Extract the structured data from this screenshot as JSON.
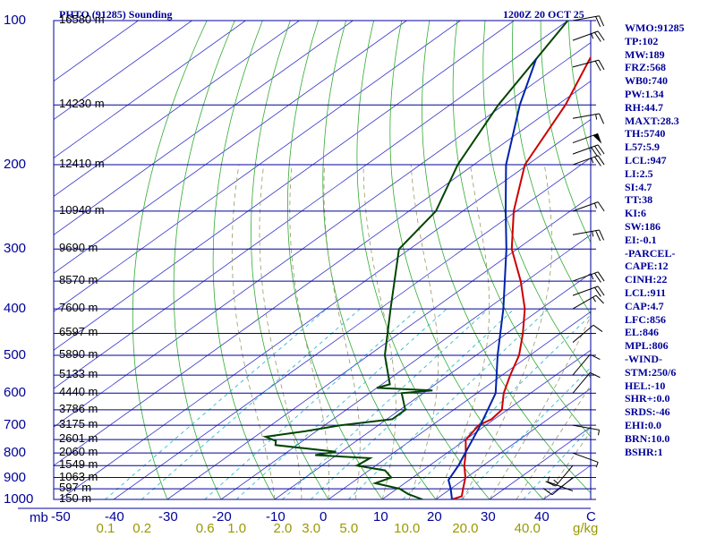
{
  "header": {
    "station": "PHTO (91285) Sounding",
    "time": "1200Z 20 OCT 25"
  },
  "indices": [
    "WMO:91285",
    "TP:102",
    "MW:189",
    "FRZ:568",
    "WB0:740",
    "PW:1.34",
    "RH:44.7",
    "MAXT:28.3",
    "TH:5740",
    "L57:5.9",
    "LCL:947",
    "LI:2.5",
    "SI:4.7",
    "TT:38",
    "KI:6",
    "SW:186",
    "EI:-0.1",
    "-PARCEL-",
    "CAPE:12",
    "CINH:22",
    "LCL:911",
    "CAP:4.7",
    "LFC:856",
    "EL:846",
    "MPL:806",
    "-WIND-",
    "STM:250/6",
    "HEL:-10",
    "SHR+:0.0",
    "SRDS:-46",
    "EHI:0.0",
    "BRN:10.0",
    "BSHR:1"
  ],
  "colors": {
    "isobar": "#000099",
    "isotherm": "#3333cc",
    "dry_adiabat": "#33aa33",
    "moist_adiabat": "#999966",
    "mixing_ratio": "#33bbcc",
    "temperature": "#cc0000",
    "dewpoint": "#004400",
    "parcel": "#0022aa",
    "wind": "#000000",
    "axis_text": "#000099",
    "mixing_text": "#999900"
  },
  "chart_data": {
    "type": "line",
    "title": "PHTO (91285) Sounding",
    "xlabel": "C",
    "ylabel": "mb",
    "temp_range": [
      -50,
      50
    ],
    "pressure_range": [
      100,
      1000
    ],
    "skew": "skew-T log-P",
    "pressure_ticks": [
      100,
      200,
      300,
      400,
      500,
      600,
      700,
      800,
      900,
      1000
    ],
    "height_labels": [
      {
        "p": 100,
        "label": "16580 m"
      },
      {
        "p": 150,
        "label": "14230 m"
      },
      {
        "p": 200,
        "label": "12410 m"
      },
      {
        "p": 250,
        "label": "10940 m"
      },
      {
        "p": 300,
        "label": "9690 m"
      },
      {
        "p": 350,
        "label": "8570 m"
      },
      {
        "p": 400,
        "label": "7600 m"
      },
      {
        "p": 450,
        "label": "6597 m"
      },
      {
        "p": 500,
        "label": "5890 m"
      },
      {
        "p": 550,
        "label": "5133 m"
      },
      {
        "p": 600,
        "label": "4440 m"
      },
      {
        "p": 650,
        "label": "3786 m"
      },
      {
        "p": 700,
        "label": "3175 m"
      },
      {
        "p": 750,
        "label": "2601 m"
      },
      {
        "p": 800,
        "label": "2060 m"
      },
      {
        "p": 850,
        "label": "1549 m"
      },
      {
        "p": 900,
        "label": "1063 m"
      },
      {
        "p": 950,
        "label": "597 m"
      },
      {
        "p": 1000,
        "label": "150 m"
      }
    ],
    "temp_ticks": [
      "-50",
      "-40",
      "-30",
      "-20",
      "-10",
      "0",
      "10",
      "20",
      "30",
      "40"
    ],
    "temp_tick_values": [
      -50,
      -40,
      -30,
      -20,
      -10,
      0,
      10,
      20,
      30,
      40
    ],
    "mixing_ticks": [
      {
        "label": "0.1",
        "w": 0.1
      },
      {
        "label": "0.2",
        "w": 0.2
      },
      {
        "label": "0.6",
        "w": 0.6
      },
      {
        "label": "1.0",
        "w": 1.0
      },
      {
        "label": "2.0",
        "w": 2.0
      },
      {
        "label": "3.0",
        "w": 3.0
      },
      {
        "label": "5.0",
        "w": 5.0
      },
      {
        "label": "10.0",
        "w": 10.0
      },
      {
        "label": "20.0",
        "w": 20.0
      },
      {
        "label": "40.0",
        "w": 40.0
      }
    ],
    "mixing_unit": "g/kg",
    "pressure_unit": "mb",
    "series": [
      {
        "name": "",
        "role": "temperature",
        "points": [
          [
            100,
            -71.0
          ],
          [
            120,
            -66.0
          ],
          [
            150,
            -58.5
          ],
          [
            200,
            -50.5
          ],
          [
            250,
            -40.5
          ],
          [
            300,
            -31.0
          ],
          [
            350,
            -21.0
          ],
          [
            400,
            -13.0
          ],
          [
            450,
            -7.0
          ],
          [
            500,
            -2.0
          ],
          [
            550,
            1.5
          ],
          [
            600,
            5.0
          ],
          [
            650,
            9.0
          ],
          [
            680,
            9.5
          ],
          [
            700,
            8.7
          ],
          [
            750,
            10.0
          ],
          [
            800,
            13.5
          ],
          [
            850,
            16.5
          ],
          [
            900,
            19.8
          ],
          [
            950,
            22.3
          ],
          [
            985,
            24.0
          ],
          [
            1000,
            23.0
          ]
        ]
      },
      {
        "name": "",
        "role": "dewpoint",
        "points": [
          [
            100,
            -80.0
          ],
          [
            150,
            -71.0
          ],
          [
            200,
            -63.0
          ],
          [
            250,
            -55.0
          ],
          [
            300,
            -52.0
          ],
          [
            400,
            -38.0
          ],
          [
            500,
            -27.0
          ],
          [
            575,
            -18.5
          ],
          [
            585,
            -20.0
          ],
          [
            592,
            -9.0
          ],
          [
            600,
            -14.0
          ],
          [
            650,
            -9.0
          ],
          [
            680,
            -9.0
          ],
          [
            700,
            -17.0
          ],
          [
            720,
            -22.0
          ],
          [
            740,
            -28.0
          ],
          [
            755,
            -25.0
          ],
          [
            770,
            -24.0
          ],
          [
            795,
            -11.0
          ],
          [
            808,
            -14.0
          ],
          [
            820,
            -3.0
          ],
          [
            850,
            -3.5
          ],
          [
            870,
            3.0
          ],
          [
            900,
            6.0
          ],
          [
            925,
            4.5
          ],
          [
            950,
            10.5
          ],
          [
            975,
            13.5
          ],
          [
            1000,
            17.5
          ]
        ]
      },
      {
        "name": "",
        "role": "parcel",
        "points": [
          [
            1000,
            23.0
          ],
          [
            950,
            20.0
          ],
          [
            911,
            17.3
          ],
          [
            850,
            15.4
          ],
          [
            800,
            13.4
          ],
          [
            700,
            9.0
          ],
          [
            600,
            3.5
          ],
          [
            500,
            -6.0
          ],
          [
            400,
            -17.0
          ],
          [
            300,
            -32.0
          ],
          [
            250,
            -42.0
          ],
          [
            200,
            -54.0
          ],
          [
            150,
            -67.0
          ],
          [
            120,
            -76.0
          ]
        ]
      }
    ],
    "winds": [
      {
        "p": 100,
        "dir": 80,
        "spd": 20
      },
      {
        "p": 110,
        "dir": 70,
        "spd": 25
      },
      {
        "p": 125,
        "dir": 75,
        "spd": 20
      },
      {
        "p": 160,
        "dir": 80,
        "spd": 15
      },
      {
        "p": 180,
        "dir": 70,
        "spd": 50
      },
      {
        "p": 190,
        "dir": 70,
        "spd": 30
      },
      {
        "p": 200,
        "dir": 70,
        "spd": 25
      },
      {
        "p": 250,
        "dir": 70,
        "spd": 15
      },
      {
        "p": 280,
        "dir": 80,
        "spd": 25
      },
      {
        "p": 350,
        "dir": 70,
        "spd": 25
      },
      {
        "p": 375,
        "dir": 70,
        "spd": 20
      },
      {
        "p": 400,
        "dir": 60,
        "spd": 15
      },
      {
        "p": 470,
        "dir": 50,
        "spd": 10
      },
      {
        "p": 550,
        "dir": 40,
        "spd": 10
      },
      {
        "p": 600,
        "dir": 40,
        "spd": 10
      },
      {
        "p": 700,
        "dir": 100,
        "spd": 5
      },
      {
        "p": 800,
        "dir": 110,
        "spd": 5
      },
      {
        "p": 850,
        "dir": 220,
        "spd": 15
      },
      {
        "p": 900,
        "dir": 230,
        "spd": 10
      },
      {
        "p": 960,
        "dir": 290,
        "spd": 5
      }
    ]
  }
}
